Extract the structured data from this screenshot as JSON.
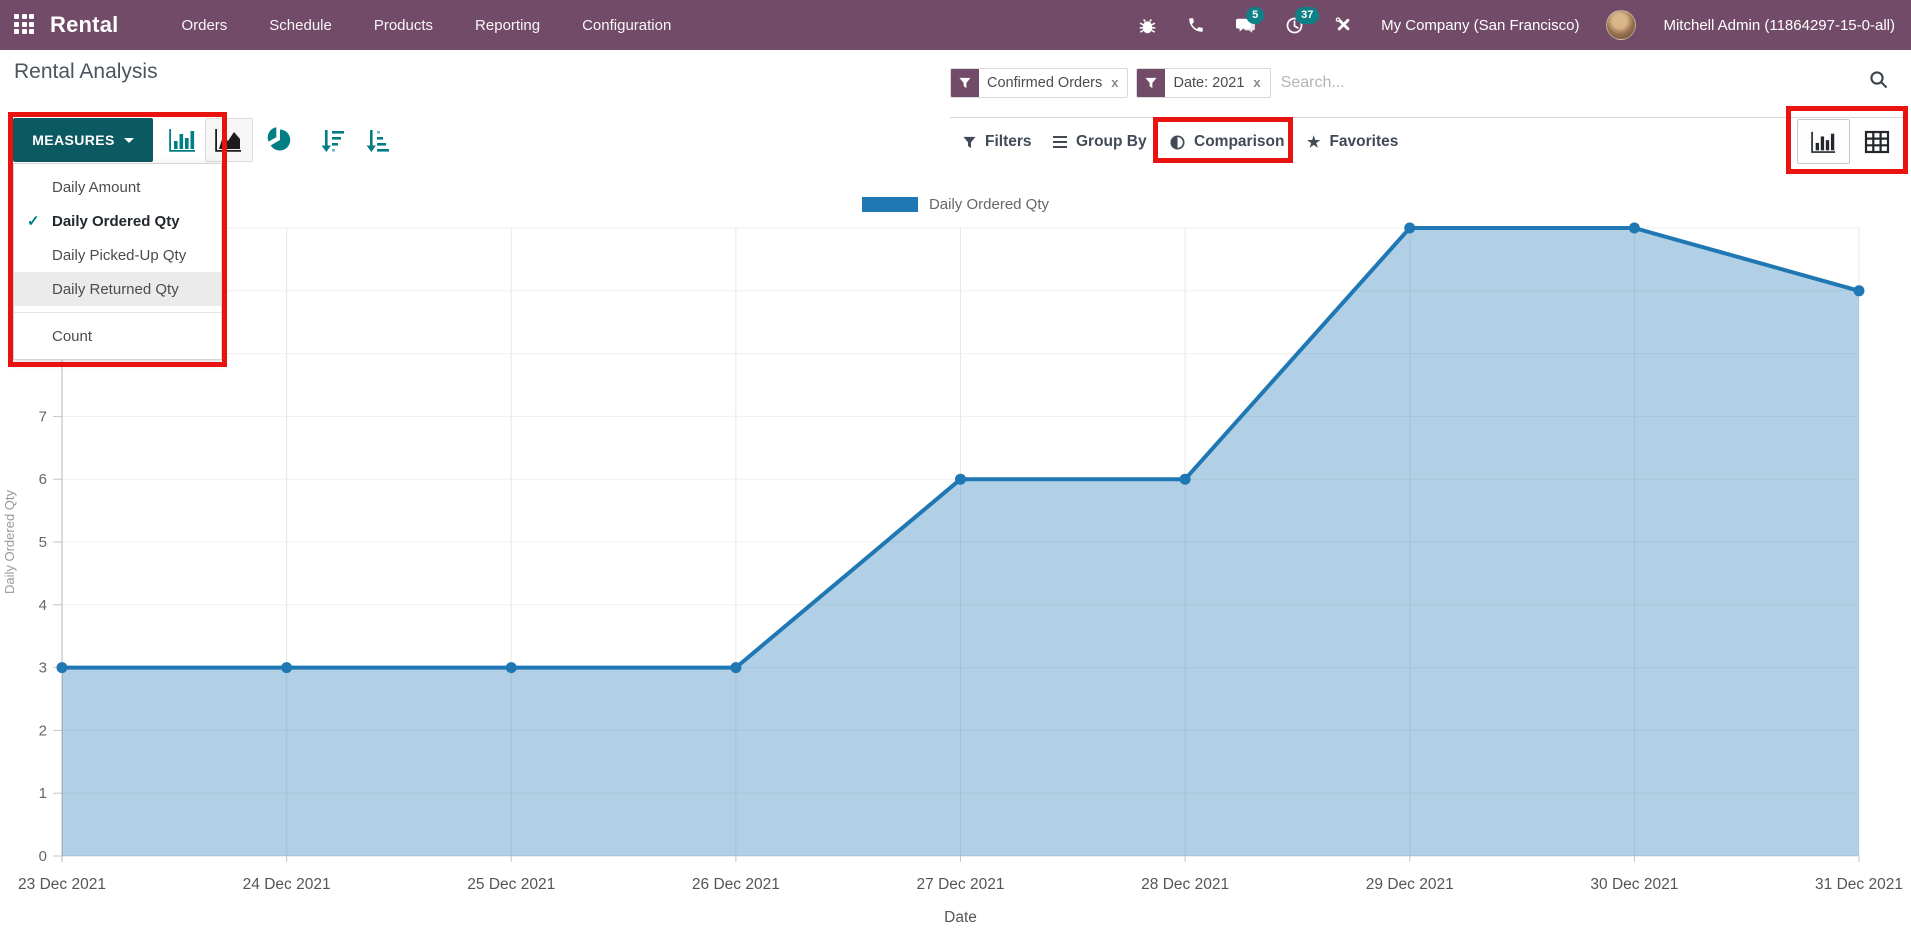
{
  "navbar": {
    "brand": "Rental",
    "menu": [
      "Orders",
      "Schedule",
      "Products",
      "Reporting",
      "Configuration"
    ],
    "badges": {
      "messages": "5",
      "activities": "37"
    },
    "company": "My Company (San Francisco)",
    "user": "Mitchell Admin (11864297-15-0-all)"
  },
  "breadcrumb": {
    "title": "Rental Analysis"
  },
  "search": {
    "facets": [
      {
        "label": "Confirmed Orders",
        "remove": "x"
      },
      {
        "label": "Date: 2021",
        "remove": "x"
      }
    ],
    "placeholder": "Search..."
  },
  "toolbar": {
    "measures_label": "MEASURES",
    "measures_menu": {
      "items": [
        {
          "label": "Daily Amount",
          "checked": false,
          "highlighted": false
        },
        {
          "label": "Daily Ordered Qty",
          "checked": true,
          "highlighted": false
        },
        {
          "label": "Daily Picked-Up Qty",
          "checked": false,
          "highlighted": false
        },
        {
          "label": "Daily Returned Qty",
          "checked": false,
          "highlighted": true
        }
      ],
      "count_label": "Count"
    },
    "filters_label": "Filters",
    "groupby_label": "Group By",
    "comparison_label": "Comparison",
    "favorites_label": "Favorites"
  },
  "chart_data": {
    "type": "area",
    "x": [
      "23 Dec 2021",
      "24 Dec 2021",
      "25 Dec 2021",
      "26 Dec 2021",
      "27 Dec 2021",
      "28 Dec 2021",
      "29 Dec 2021",
      "30 Dec 2021",
      "31 Dec 2021"
    ],
    "series": [
      {
        "name": "Daily Ordered Qty",
        "values": [
          3,
          3,
          3,
          3,
          6,
          6,
          10,
          10,
          9
        ]
      }
    ],
    "legend": [
      "Daily Ordered Qty"
    ],
    "legend_position": "top",
    "xlabel": "Date",
    "ylabel": "Daily Ordered Qty",
    "ylim": [
      0,
      10
    ],
    "yticks": [
      0,
      1,
      2,
      3,
      4,
      5,
      6,
      7,
      8,
      9,
      10
    ],
    "grid": true,
    "colors": {
      "line": "#1f77b4",
      "fill_opacity": 0.35
    }
  },
  "colors": {
    "navbar": "#714B67",
    "accent_teal": "#017e84",
    "measures_button": "#0B5A61",
    "badge": "#0E8187",
    "annotation_red": "#E8130E",
    "series_blue": "#1f77b4"
  }
}
